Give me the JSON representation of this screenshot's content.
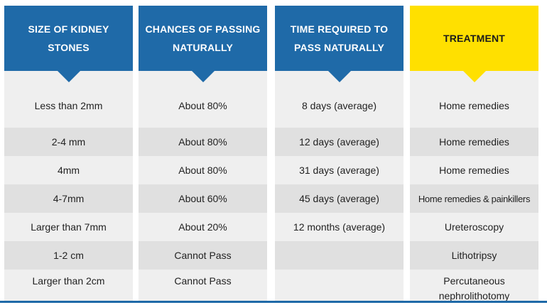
{
  "columns": [
    {
      "header": "SIZE OF KIDNEY STONES",
      "rows": [
        "Less than 2mm",
        "2-4 mm",
        "4mm",
        "4-7mm",
        "Larger than 7mm",
        "1-2 cm",
        "Larger than 2cm"
      ]
    },
    {
      "header": "CHANCES OF PASSING NATURALLY",
      "rows": [
        "About 80%",
        "About 80%",
        "About 80%",
        "About 60%",
        "About 20%",
        "Cannot Pass",
        "Cannot Pass"
      ]
    },
    {
      "header": "TIME REQUIRED TO PASS NATURALLY",
      "rows": [
        "8 days (average)",
        "12 days (average)",
        "31 days (average)",
        "45 days (average)",
        "12 months (average)",
        "",
        ""
      ]
    },
    {
      "header": "TREATMENT",
      "rows": [
        "Home remedies",
        "Home remedies",
        "Home remedies",
        "Home remedies & painkillers",
        "Ureteroscopy",
        "Lithotripsy",
        "Percutaneous nephrolithotomy"
      ]
    }
  ],
  "colors": {
    "header_blue": "#1f6aa8",
    "header_yellow": "#ffe000",
    "row_light": "#efefef",
    "row_dark": "#e0e0e0"
  }
}
